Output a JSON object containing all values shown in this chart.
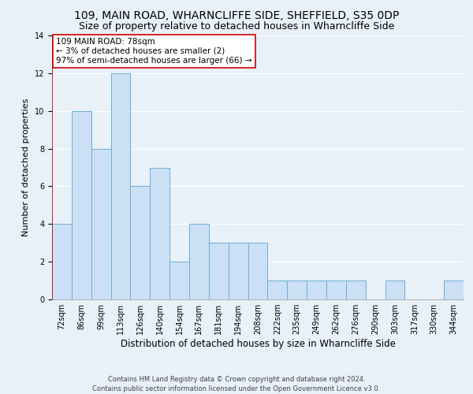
{
  "title": "109, MAIN ROAD, WHARNCLIFFE SIDE, SHEFFIELD, S35 0DP",
  "subtitle": "Size of property relative to detached houses in Wharncliffe Side",
  "xlabel": "Distribution of detached houses by size in Wharncliffe Side",
  "ylabel": "Number of detached properties",
  "bar_labels": [
    "72sqm",
    "86sqm",
    "99sqm",
    "113sqm",
    "126sqm",
    "140sqm",
    "154sqm",
    "167sqm",
    "181sqm",
    "194sqm",
    "208sqm",
    "222sqm",
    "235sqm",
    "249sqm",
    "262sqm",
    "276sqm",
    "290sqm",
    "303sqm",
    "317sqm",
    "330sqm",
    "344sqm"
  ],
  "bar_heights": [
    4,
    10,
    8,
    12,
    6,
    7,
    2,
    4,
    3,
    3,
    3,
    1,
    1,
    1,
    1,
    1,
    0,
    1,
    0,
    0,
    1
  ],
  "bar_color": "#cce0f5",
  "bar_edge_color": "#6aaed6",
  "background_color": "#e8f0f8",
  "plot_bg_color": "#e8f0f8",
  "annotation_text": "109 MAIN ROAD: 78sqm\n← 3% of detached houses are smaller (2)\n97% of semi-detached houses are larger (66) →",
  "annotation_box_color": "#ffffff",
  "annotation_box_edge": "#cc0000",
  "redline_color": "#cc0000",
  "ylim": [
    0,
    14
  ],
  "yticks": [
    0,
    2,
    4,
    6,
    8,
    10,
    12,
    14
  ],
  "footer_line1": "Contains HM Land Registry data © Crown copyright and database right 2024.",
  "footer_line2": "Contains public sector information licensed under the Open Government Licence v3.0.",
  "title_fontsize": 10,
  "subtitle_fontsize": 9,
  "xlabel_fontsize": 8.5,
  "ylabel_fontsize": 8,
  "tick_fontsize": 7,
  "annotation_fontsize": 7.5,
  "footer_fontsize": 6
}
